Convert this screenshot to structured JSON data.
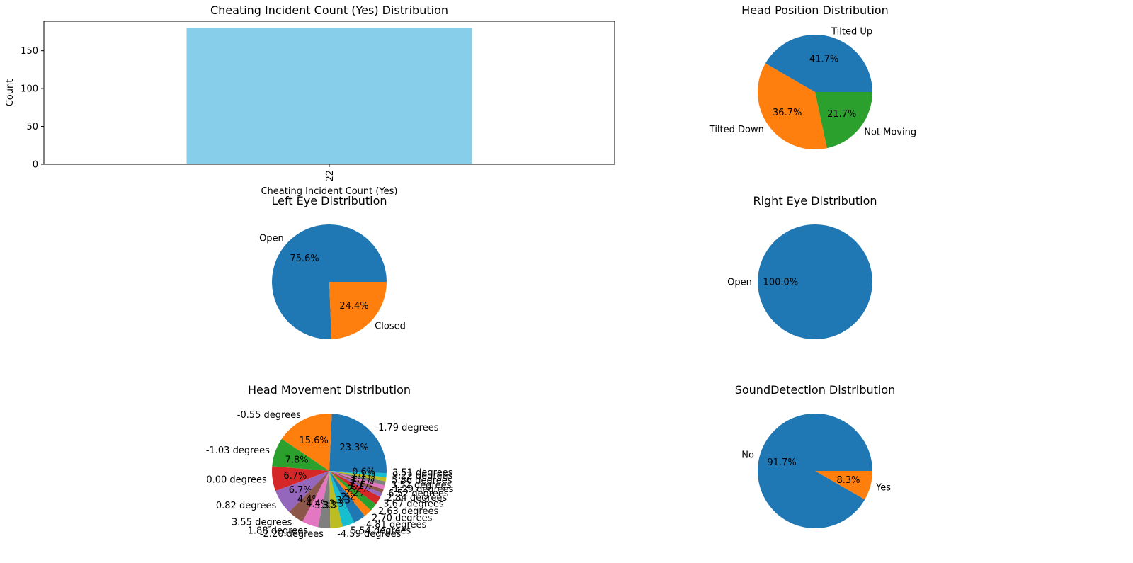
{
  "colors": [
    "#1f77b4",
    "#ff7f0e",
    "#2ca02c",
    "#d62728",
    "#9467bd",
    "#8c564b",
    "#e377c2",
    "#7f7f7f",
    "#bcbd22",
    "#17becf"
  ],
  "bar_color": "#87ceeb",
  "chart_data": [
    {
      "type": "bar",
      "title": "Cheating Incident Count (Yes) Distribution",
      "xlabel": "Cheating Incident Count (Yes)",
      "ylabel": "Count",
      "categories": [
        "22"
      ],
      "values": [
        180
      ],
      "ylim": [
        0,
        189
      ],
      "yticks": [
        "0",
        "50",
        "100",
        "150"
      ]
    },
    {
      "type": "pie",
      "title": "Head Position Distribution",
      "slices": [
        {
          "label": "Tilted Up",
          "pct": "41.7%",
          "value": 41.7
        },
        {
          "label": "Tilted Down",
          "pct": "36.7%",
          "value": 36.7
        },
        {
          "label": "Not Moving",
          "pct": "21.7%",
          "value": 21.7
        }
      ]
    },
    {
      "type": "pie",
      "title": "Left Eye Distribution",
      "slices": [
        {
          "label": "Open",
          "pct": "75.6%",
          "value": 75.6
        },
        {
          "label": "Closed",
          "pct": "24.4%",
          "value": 24.4
        }
      ]
    },
    {
      "type": "pie",
      "title": "Right Eye Distribution",
      "slices": [
        {
          "label": "Open",
          "pct": "100.0%",
          "value": 100.0
        }
      ]
    },
    {
      "type": "pie",
      "title": "Head Movement Distribution",
      "slices": [
        {
          "label": "-1.79 degrees",
          "pct": "23.3%",
          "value": 23.3
        },
        {
          "label": "-0.55 degrees",
          "pct": "15.6%",
          "value": 15.6
        },
        {
          "label": "-1.03 degrees",
          "pct": "7.8%",
          "value": 7.8
        },
        {
          "label": "0.00 degrees",
          "pct": "6.7%",
          "value": 6.7
        },
        {
          "label": "0.82 degrees",
          "pct": "6.7%",
          "value": 6.7
        },
        {
          "label": "3.55 degrees",
          "pct": "4.4%",
          "value": 4.4
        },
        {
          "label": "1.88 degrees",
          "pct": "4.4%",
          "value": 4.4
        },
        {
          "label": "-2.20 degrees",
          "pct": "3.3%",
          "value": 3.3
        },
        {
          "label": "-4.59 degrees",
          "pct": "3.3%",
          "value": 3.3
        },
        {
          "label": "5.54 degrees",
          "pct": "3.3%",
          "value": 3.3
        },
        {
          "label": "-4.81 degrees",
          "pct": "3.3%",
          "value": 3.3
        },
        {
          "label": "2.70 degrees",
          "pct": "2.2%",
          "value": 2.2
        },
        {
          "label": "2.63 degrees",
          "pct": "2.2%",
          "value": 2.2
        },
        {
          "label": "3.67 degrees",
          "pct": "2.2%",
          "value": 2.2
        },
        {
          "label": "2.84 degrees",
          "pct": "1.1%",
          "value": 1.1
        },
        {
          "label": "6.52 degrees",
          "pct": "1.1%",
          "value": 1.1
        },
        {
          "label": "-1.29 degrees",
          "pct": "1.1%",
          "value": 1.1
        },
        {
          "label": "3.52 degrees",
          "pct": "1.1%",
          "value": 1.1
        },
        {
          "label": "5.86 degrees",
          "pct": "1.1%",
          "value": 1.1
        },
        {
          "label": "9.22 degrees",
          "pct": "1.1%",
          "value": 1.1
        },
        {
          "label": "3.51 degrees",
          "pct": "0.6%",
          "value": 0.6
        }
      ]
    },
    {
      "type": "pie",
      "title": "SoundDetection Distribution",
      "slices": [
        {
          "label": "No",
          "pct": "91.7%",
          "value": 91.7
        },
        {
          "label": "Yes",
          "pct": "8.3%",
          "value": 8.3
        }
      ]
    }
  ]
}
